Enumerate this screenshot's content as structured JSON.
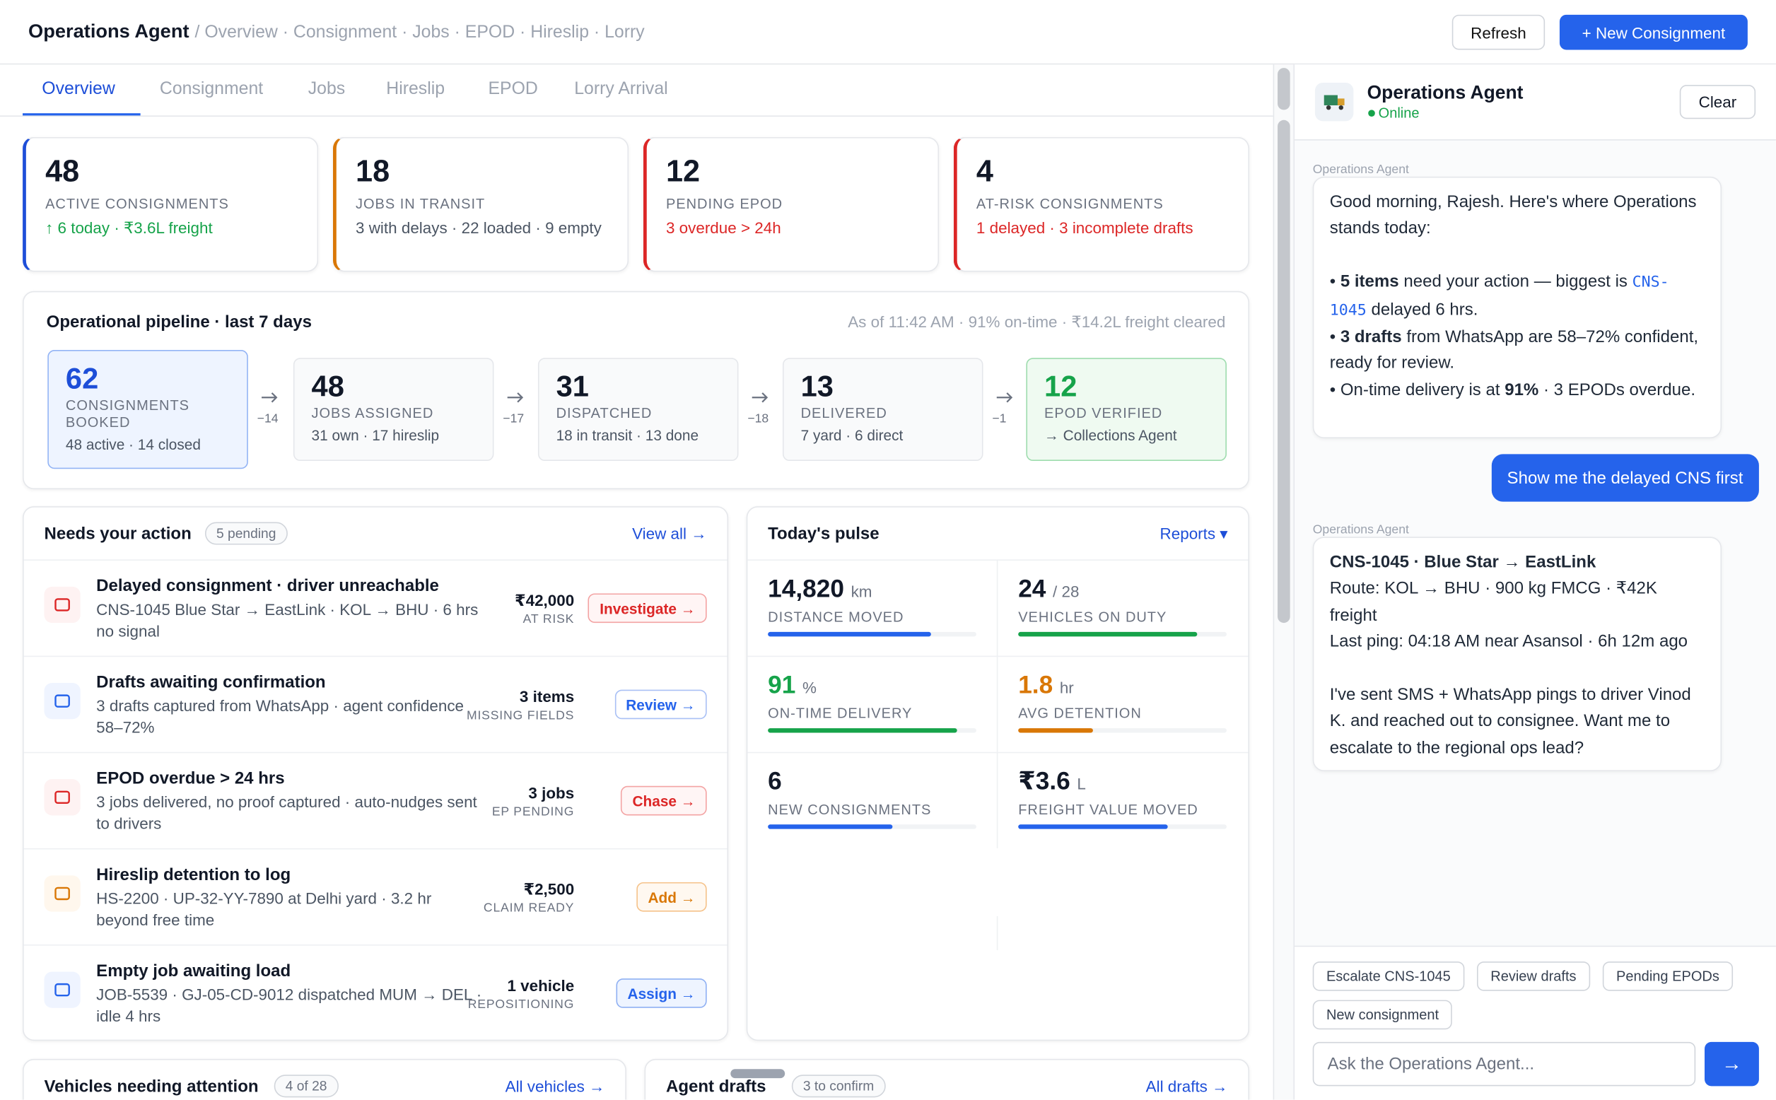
{
  "header": {
    "title": "Operations Agent",
    "breadcrumb": "/ Overview · Consignment · Jobs · EPOD · Hireslip · Lorry",
    "buttons": [
      "Refresh",
      "+ New Consignment"
    ]
  },
  "tabs": [
    "Overview",
    "Consignment",
    "Jobs",
    "Hireslip",
    "EPOD",
    "Lorry Arrival"
  ],
  "kpis": [
    {
      "value": "48",
      "label": "ACTIVE CONSIGNMENTS",
      "note": "↑ 6 today · ₹3.6L freight"
    },
    {
      "value": "18",
      "label": "JOBS IN TRANSIT",
      "note": "3 with delays · 22 loaded · 9 empty"
    },
    {
      "value": "12",
      "label": "PENDING EPOD",
      "note": "3 overdue > 24h"
    },
    {
      "value": "4",
      "label": "AT-RISK CONSIGNMENTS",
      "note": "1 delayed · 3 incomplete drafts"
    }
  ],
  "pipeline": {
    "title": "Operational pipeline · last 7 days",
    "status": "As of 11:42 AM · 91% on-time · ₹14.2L freight cleared",
    "stages": [
      {
        "value": "62",
        "label": "CONSIGNMENTS BOOKED",
        "note": "48 active · 14 closed"
      },
      {
        "value": "48",
        "label": "JOBS ASSIGNED",
        "note": "31 own · 17 hireslip"
      },
      {
        "value": "31",
        "label": "DISPATCHED",
        "note": "18 in transit · 13 done"
      },
      {
        "value": "13",
        "label": "DELIVERED",
        "note": "7 yard · 6 direct"
      },
      {
        "value": "12",
        "label": "EPOD VERIFIED",
        "note": "→ Collections Agent"
      }
    ],
    "deltas": [
      "−14",
      "−17",
      "−18",
      "−1"
    ]
  },
  "actions": {
    "title": "Needs your action",
    "badge": "5 pending",
    "link": "View all →",
    "items": [
      {
        "title": "Delayed consignment · driver unreachable",
        "desc": "CNS-1045 Blue Star → EastLink · KOL → BHU · 6 hrs no signal",
        "amount": "₹42,000",
        "amount_label": "AT RISK",
        "button": "Investigate →"
      },
      {
        "title": "Drafts awaiting confirmation",
        "desc": "3 drafts captured from WhatsApp · agent confidence 58–72%",
        "amount": "3 items",
        "amount_label": "MISSING FIELDS",
        "button": "Review →"
      },
      {
        "title": "EPOD overdue > 24 hrs",
        "desc": "3 jobs delivered, no proof captured · auto-nudges sent to drivers",
        "amount": "3 jobs",
        "amount_label": "EP PENDING",
        "button": "Chase →"
      },
      {
        "title": "Hireslip detention to log",
        "desc": "HS-2200 · UP-32-YY-7890 at Delhi yard · 3.2 hr beyond free time",
        "amount": "₹2,500",
        "amount_label": "CLAIM READY",
        "button": "Add →"
      },
      {
        "title": "Empty job awaiting load",
        "desc": "JOB-5539 · GJ-05-CD-9012 dispatched MUM → DEL · idle 4 hrs",
        "amount": "1 vehicle",
        "amount_label": "REPOSITIONING",
        "button": "Assign →"
      }
    ]
  },
  "pulse": {
    "title": "Today's pulse",
    "link": "Reports ▾",
    "metrics": [
      {
        "value": "14,820",
        "unit": "km",
        "label": "DISTANCE MOVED"
      },
      {
        "value": "24",
        "unit": "/ 28",
        "label": "VEHICLES ON DUTY"
      },
      {
        "value": "91",
        "unit": "%",
        "label": "ON-TIME DELIVERY"
      },
      {
        "value": "1.8",
        "unit": "hr",
        "label": "AVG DETENTION"
      },
      {
        "value": "6",
        "unit": "",
        "label": "NEW CONSIGNMENTS"
      },
      {
        "value": "₹3.6",
        "unit": "L",
        "label": "FREIGHT VALUE MOVED"
      }
    ]
  },
  "bottom": [
    {
      "title": "Vehicles needing attention",
      "badge": "4 of 28",
      "link": "All vehicles →"
    },
    {
      "title": "Agent drafts",
      "badge": "3 to confirm",
      "link": "All drafts →"
    }
  ],
  "chat": {
    "title": "Operations Agent",
    "status": "Online",
    "clear": "Clear",
    "messages": [
      {
        "sender": "Operations Agent",
        "lines": [
          [
            "Good morning, Rajesh. Here's where Operations stands today:"
          ],
          [
            "• ",
            "5 items",
            " need your action — biggest is ",
            "CNS-1045",
            " delayed 6 hrs."
          ],
          [
            "• ",
            "3 drafts",
            " from WhatsApp are 58–72% confident, ready for review."
          ],
          [
            "• On-time delivery is at ",
            "91%",
            " · 3 EPODs overdue."
          ]
        ]
      },
      {
        "text": "Show me the delayed CNS first"
      },
      {
        "sender": "Operations Agent",
        "lines": [
          [
            "CNS-1045 · Blue Star → EastLink"
          ],
          [
            "Route: KOL → BHU · 900 kg FMCG · ₹42K freight"
          ],
          [
            "Last ping: 04:18 AM near Asansol · 6h 12m ago"
          ],
          [
            "I've sent SMS + WhatsApp pings to driver Vinod K. and reached out to consignee. Want me to escalate to the regional ops lead?"
          ]
        ]
      }
    ],
    "chips": [
      "Escalate CNS-1045",
      "Review drafts",
      "Pending EPODs",
      "New consignment"
    ],
    "placeholder": "Ask the Operations Agent...",
    "send": "→"
  }
}
